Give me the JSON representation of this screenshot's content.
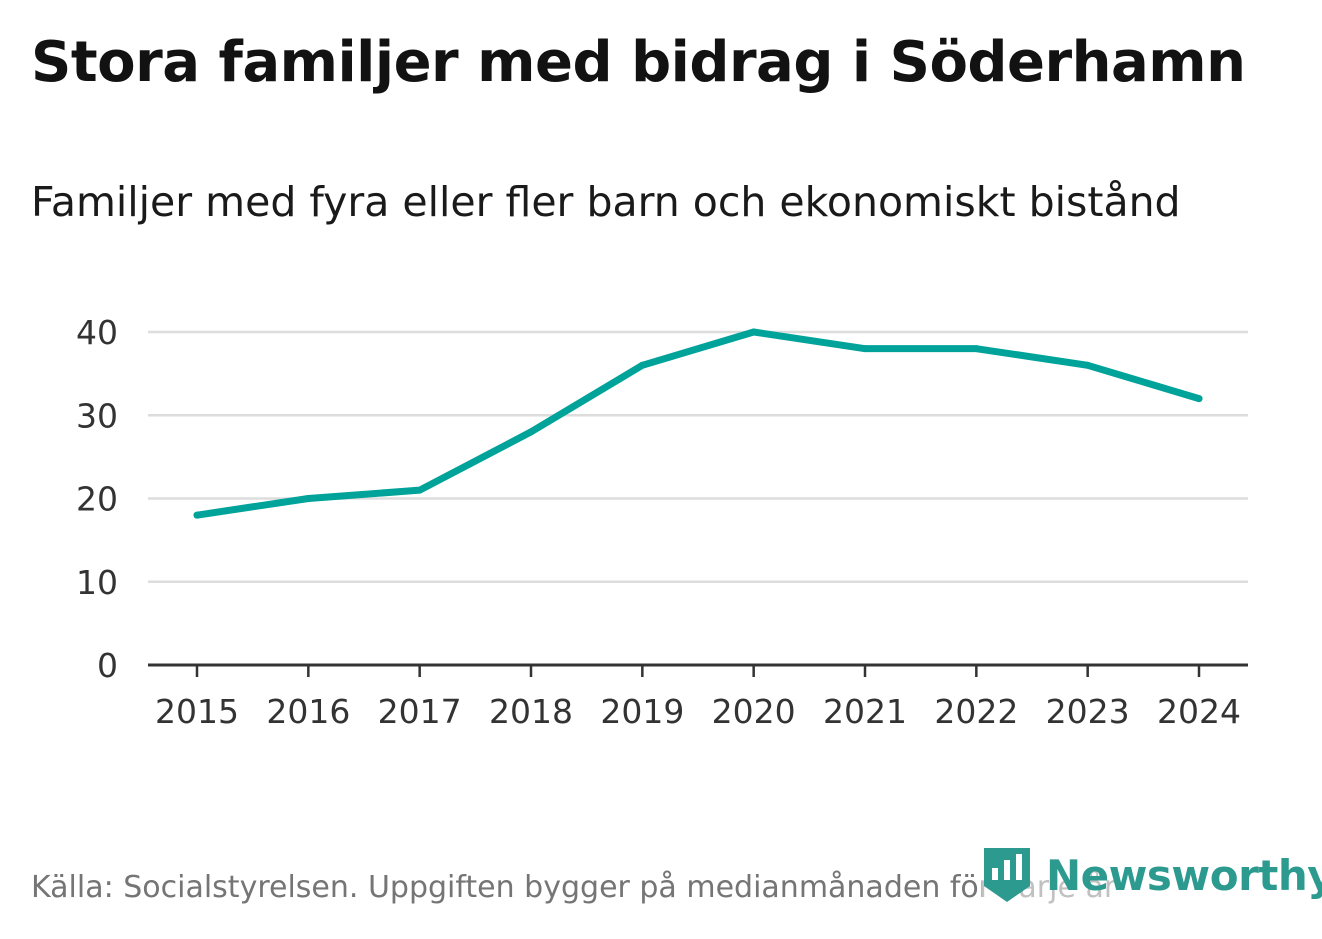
{
  "header": {
    "title": "Stora familjer med bidrag i Söderhamn",
    "subtitle": "Familjer med fyra eller fler barn och ekonomiskt bistånd"
  },
  "footer": {
    "source": "Källa: Socialstyrelsen. Uppgiften bygger på medianmånaden för varje år",
    "brand": "Newsworthy"
  },
  "colors": {
    "line": "#00a39a",
    "grid": "#dddddd",
    "axis": "#333333",
    "brand": "#2c9a8f"
  },
  "icons": {
    "logo": "newsworthy-logo-icon"
  },
  "chart_data": {
    "type": "line",
    "title": "Stora familjer med bidrag i Söderhamn",
    "subtitle": "Familjer med fyra eller fler barn och ekonomiskt bistånd",
    "xlabel": "",
    "ylabel": "",
    "categories": [
      "2015",
      "2016",
      "2017",
      "2018",
      "2019",
      "2020",
      "2021",
      "2022",
      "2023",
      "2024"
    ],
    "series": [
      {
        "name": "Familjer med fyra eller fler barn och ekonomiskt bistånd",
        "values": [
          18,
          20,
          21,
          28,
          36,
          40,
          38,
          38,
          36,
          32
        ]
      }
    ],
    "ylim": [
      0,
      40
    ],
    "yticks": [
      0,
      10,
      20,
      30,
      40
    ],
    "grid": true,
    "legend": "none"
  }
}
